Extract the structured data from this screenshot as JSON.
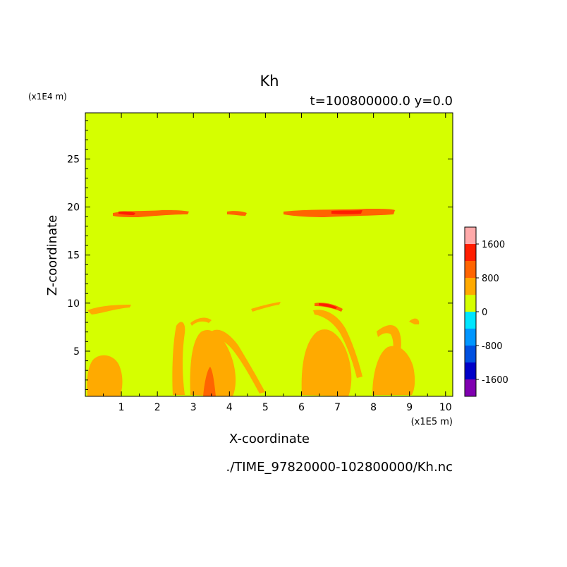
{
  "chart_data": {
    "type": "heatmap",
    "title": "Kh",
    "subtitle": "t=100800000.0 y=0.0",
    "xlabel": "X-coordinate",
    "ylabel": "Z-coordinate",
    "x_unit": "(x1E5 m)",
    "y_unit": "(x1E4 m)",
    "file_path": "./TIME_97820000-102800000/Kh.nc",
    "xlim": [
      0,
      10.2
    ],
    "ylim": [
      0.3,
      29.8
    ],
    "x_ticks": [
      "1",
      "2",
      "3",
      "4",
      "5",
      "6",
      "7",
      "8",
      "9",
      "10"
    ],
    "y_ticks": [
      "5",
      "10",
      "15",
      "20",
      "25"
    ],
    "background_level": 0,
    "colorbar": {
      "levels": [
        -2000,
        -1600,
        -1200,
        -800,
        -400,
        0,
        400,
        800,
        1200,
        1600,
        2000
      ],
      "labels": [
        "-1600",
        "-800",
        "0",
        "800",
        "1600"
      ],
      "label_values": [
        -1600,
        -800,
        0,
        800,
        1600
      ],
      "colors": [
        "#8000b0",
        "#0000c8",
        "#0050e0",
        "#0096ff",
        "#00e6ff",
        "#d5ff00",
        "#ffaa00",
        "#ff6400",
        "#ff1e00",
        "#ffaaaa"
      ]
    },
    "colors": {
      "background": "#d5ff00",
      "level_400_800": "#ffaa00",
      "level_800_1200": "#ff6400",
      "level_1200_1600": "#ff1e00"
    }
  }
}
